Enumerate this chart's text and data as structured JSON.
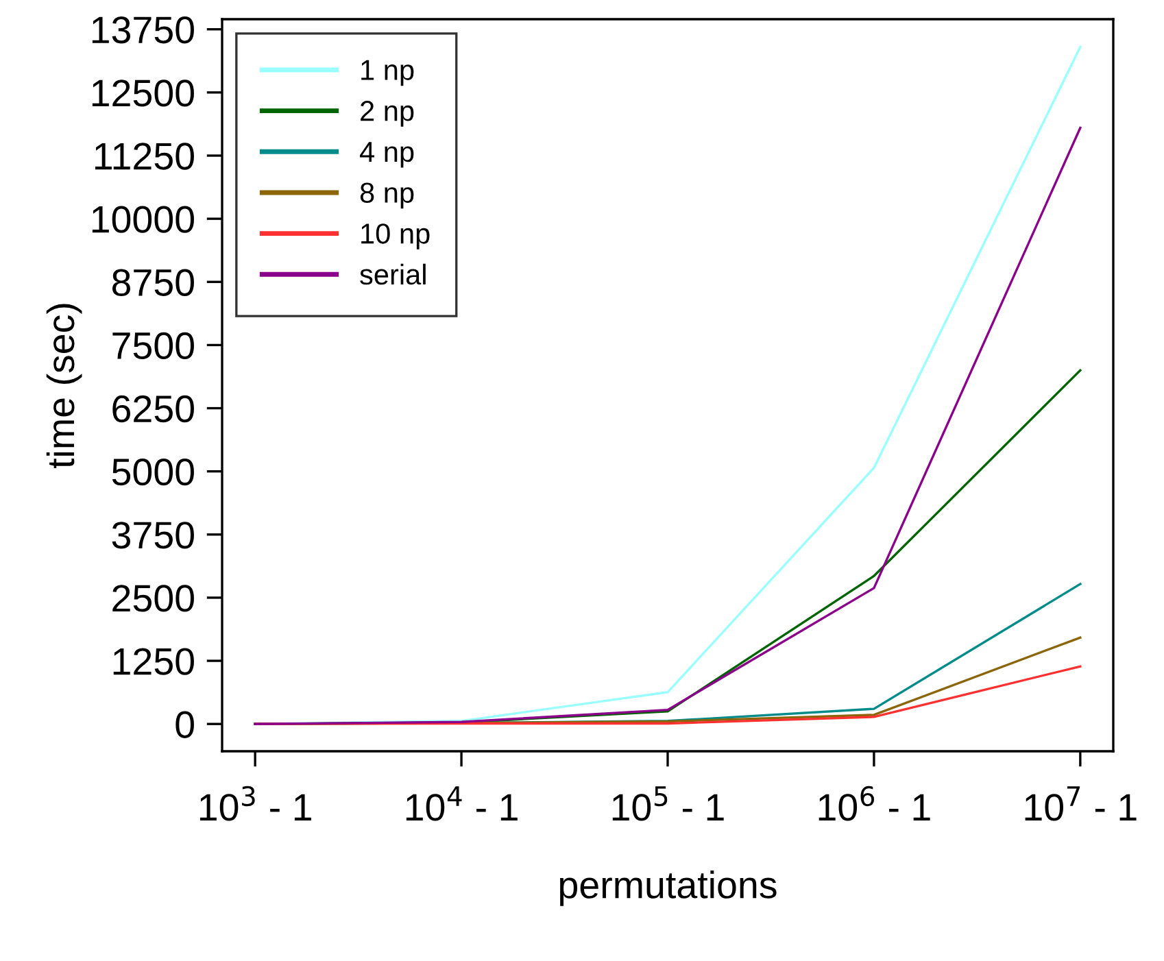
{
  "chart_data": {
    "type": "line",
    "xlabel": "permutations",
    "ylabel": "time (sec)",
    "categories": [
      "10$^{3}$ - 1",
      "10$^{4}$ - 1",
      "10$^{5}$ - 1",
      "10$^{6}$ - 1",
      "10$^{7}$ - 1"
    ],
    "series": [
      {
        "name": "1 np",
        "color": "#99ffff",
        "values": [
          0,
          60,
          630,
          5070,
          13400
        ]
      },
      {
        "name": "2 np",
        "color": "#006400",
        "values": [
          0,
          30,
          250,
          2930,
          7000
        ]
      },
      {
        "name": "4 np",
        "color": "#008b8b",
        "values": [
          0,
          20,
          60,
          300,
          2770
        ]
      },
      {
        "name": "8 np",
        "color": "#8b6508",
        "values": [
          0,
          20,
          50,
          180,
          1710
        ]
      },
      {
        "name": "10 np",
        "color": "#ff3030",
        "values": [
          0,
          10,
          10,
          140,
          1140
        ]
      },
      {
        "name": "serial",
        "color": "#8b008b",
        "values": [
          0,
          40,
          280,
          2690,
          11800
        ]
      }
    ],
    "ylim": [
      -540,
      13950
    ],
    "yticks": [
      0,
      1250,
      2500,
      3750,
      5000,
      6250,
      7500,
      8750,
      10000,
      11250,
      12500,
      13750
    ],
    "grid": false,
    "legend": "top left",
    "marker": "none",
    "line_style": "solid"
  }
}
